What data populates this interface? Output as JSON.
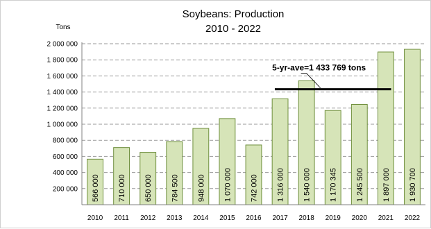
{
  "chart_data": {
    "type": "bar",
    "title": "Soybeans:  Production",
    "subtitle": "2010 - 2022",
    "xlabel": "",
    "ylabel": "Tons",
    "ylim": [
      0,
      2000000
    ],
    "yticks": [
      200000,
      400000,
      600000,
      800000,
      1000000,
      1200000,
      1400000,
      1600000,
      1800000,
      2000000
    ],
    "ytick_labels": [
      "200 000",
      "400 000",
      "600 000",
      "800 000",
      "1 000 000",
      "1 200 000",
      "1 400 000",
      "1 600 000",
      "1 800 000",
      "2 000 000"
    ],
    "grid": true,
    "categories": [
      "2010",
      "2011",
      "2012",
      "2013",
      "2014",
      "2015",
      "2016",
      "2017",
      "2018",
      "2019",
      "2020",
      "2021",
      "2022"
    ],
    "values": [
      566000,
      710000,
      650000,
      784500,
      948000,
      1070000,
      742000,
      1316000,
      1540000,
      1170345,
      1245500,
      1897000,
      1930700
    ],
    "data_labels": [
      "566 000",
      "710 000",
      "650 000",
      "784 500",
      "948 000",
      "1 070 000",
      "742 000",
      "1 316 000",
      "1 540 000",
      "1 170 345",
      "1 245 500",
      "1 897 000",
      "1 930 700"
    ],
    "bar_color": "#d6e4b8",
    "bar_edge_color": "#6f8f3d",
    "annotation": {
      "text": "5-yr-ave=1 433 769 tons",
      "value": 1433769,
      "from_category": "2017",
      "to_category": "2021"
    }
  }
}
